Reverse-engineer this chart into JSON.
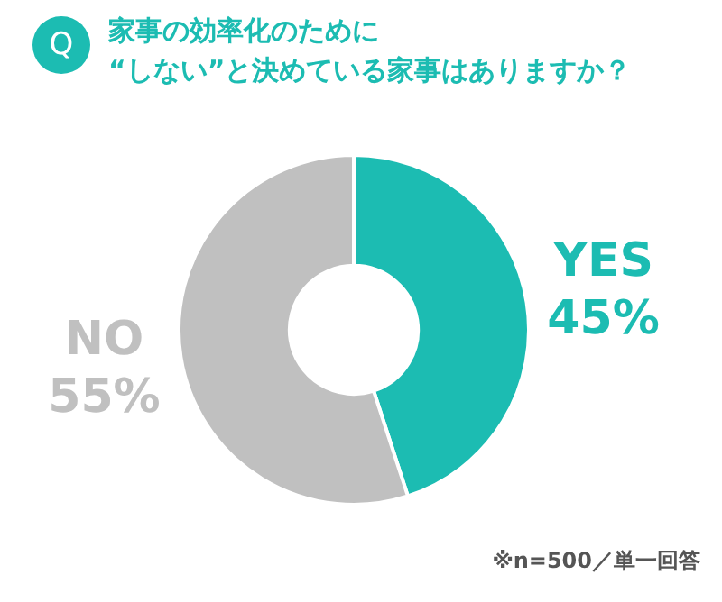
{
  "chart_data": {
    "type": "donut",
    "title": "家事の効率化のために\n“しない”と決めている家事はありますか？",
    "categories": [
      "YES",
      "NO"
    ],
    "values": [
      45,
      55
    ],
    "colors": [
      "#1cbcb2",
      "#c0c0c0"
    ],
    "value_labels": [
      "45%",
      "55%"
    ],
    "legend": false,
    "annotations": [
      "Q",
      "※n=500／単一回答"
    ]
  }
}
